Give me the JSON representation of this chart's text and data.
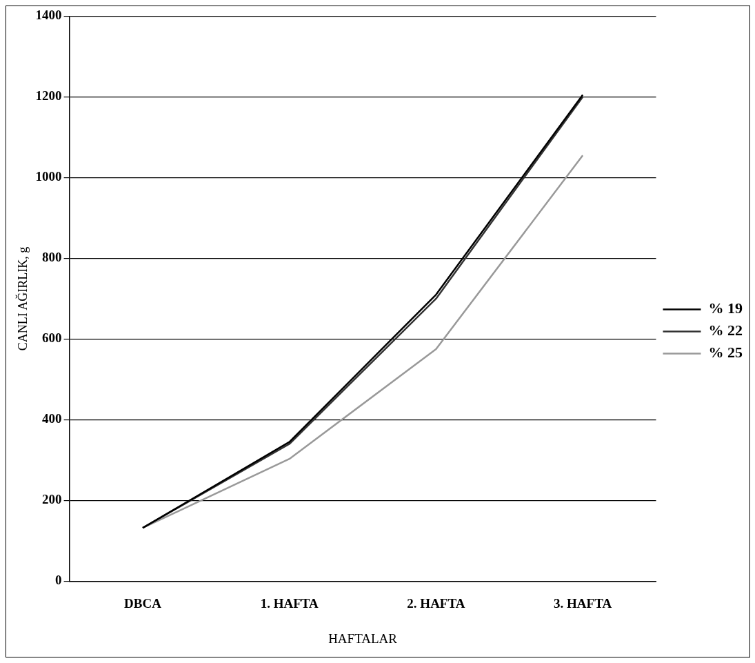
{
  "chart_data": {
    "type": "line",
    "xlabel": "HAFTALAR",
    "ylabel": "CANLI AĞIRLIK, g",
    "categories": [
      "DBCA",
      "1. HAFTA",
      "2. HAFTA",
      "3. HAFTA"
    ],
    "series": [
      {
        "name": "% 19",
        "color": "#000000",
        "values": [
          132,
          345,
          710,
          1205
        ]
      },
      {
        "name": "% 22",
        "color": "#333333",
        "values": [
          132,
          340,
          700,
          1200
        ]
      },
      {
        "name": "% 25",
        "color": "#999999",
        "values": [
          132,
          303,
          575,
          1055
        ]
      }
    ],
    "ylim": [
      0,
      1400
    ],
    "yticks": [
      0,
      200,
      400,
      600,
      800,
      1000,
      1200,
      1400
    ],
    "grid": "y",
    "legend": "right",
    "marker": "none",
    "line_style": "solid"
  }
}
